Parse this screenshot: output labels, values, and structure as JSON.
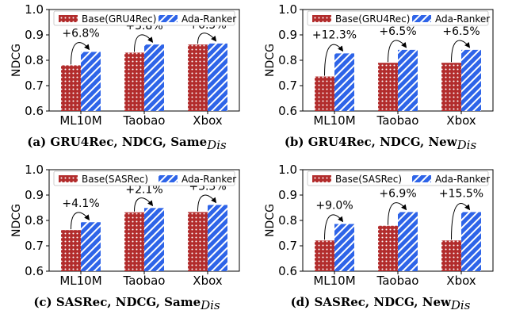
{
  "colors": {
    "base_fill": "#b22c2c",
    "base_dot": "#ffffff",
    "ada_fill": "#2e64e8",
    "ada_stripe": "#ffffff"
  },
  "chart_data": [
    {
      "type": "bar",
      "caption": "(a) GRU4Rec, NDCG, Same",
      "caption_sub": "Dis",
      "ylabel": "NDCG",
      "ylim": [
        0.6,
        1.0
      ],
      "yticks": [
        "0.6",
        "0.7",
        "0.8",
        "0.9",
        "1.0"
      ],
      "categories": [
        "ML10M",
        "Taobao",
        "Xbox"
      ],
      "legend_position": "top",
      "series": [
        {
          "name": "Base(GRU4Rec)",
          "values": [
            0.78,
            0.83,
            0.862
          ]
        },
        {
          "name": "Ada-Ranker",
          "values": [
            0.833,
            0.862,
            0.866
          ]
        }
      ],
      "annotations": [
        "+6.8%",
        "+3.8%",
        "+0.5%"
      ]
    },
    {
      "type": "bar",
      "caption": "(b) GRU4Rec, NDCG, New",
      "caption_sub": "Dis",
      "ylabel": "NDCG",
      "ylim": [
        0.6,
        1.0
      ],
      "yticks": [
        "0.6",
        "0.7",
        "0.8",
        "0.9",
        "1.0"
      ],
      "categories": [
        "ML10M",
        "Taobao",
        "Xbox"
      ],
      "legend_position": "top",
      "series": [
        {
          "name": "Base(GRU4Rec)",
          "values": [
            0.736,
            0.79,
            0.79
          ]
        },
        {
          "name": "Ada-Ranker",
          "values": [
            0.827,
            0.841,
            0.841
          ]
        }
      ],
      "annotations": [
        "+12.3%",
        "+6.5%",
        "+6.5%"
      ]
    },
    {
      "type": "bar",
      "caption": "(c) SASRec, NDCG, Same",
      "caption_sub": "Dis",
      "ylabel": "NDCG",
      "ylim": [
        0.6,
        1.0
      ],
      "yticks": [
        "0.6",
        "0.7",
        "0.8",
        "0.9",
        "1.0"
      ],
      "categories": [
        "ML10M",
        "Taobao",
        "Xbox"
      ],
      "legend_position": "top",
      "series": [
        {
          "name": "Base(SASRec)",
          "values": [
            0.762,
            0.832,
            0.833
          ]
        },
        {
          "name": "Ada-Ranker",
          "values": [
            0.793,
            0.849,
            0.861
          ]
        }
      ],
      "annotations": [
        "+4.1%",
        "+2.1%",
        "+3.3%"
      ]
    },
    {
      "type": "bar",
      "caption": "(d) SASRec, NDCG, New",
      "caption_sub": "Dis",
      "ylabel": "NDCG",
      "ylim": [
        0.6,
        1.0
      ],
      "yticks": [
        "0.6",
        "0.7",
        "0.8",
        "0.9",
        "1.0"
      ],
      "categories": [
        "ML10M",
        "Taobao",
        "Xbox"
      ],
      "legend_position": "top",
      "series": [
        {
          "name": "Base(SASRec)",
          "values": [
            0.721,
            0.779,
            0.721
          ]
        },
        {
          "name": "Ada-Ranker",
          "values": [
            0.786,
            0.833,
            0.833
          ]
        }
      ],
      "annotations": [
        "+9.0%",
        "+6.9%",
        "+15.5%"
      ]
    }
  ]
}
